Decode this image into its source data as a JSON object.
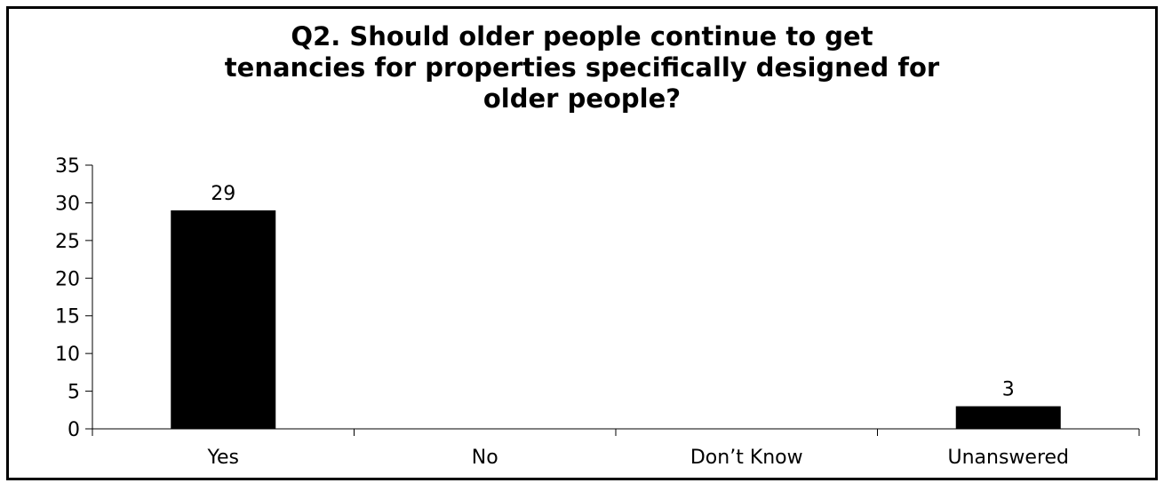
{
  "chart_data": {
    "type": "bar",
    "title_lines": [
      "Q2. Should older people continue to get",
      "tenancies for properties specifically designed for",
      "older people?"
    ],
    "categories": [
      "Yes",
      "No",
      "Don’t Know",
      "Unanswered"
    ],
    "values": [
      29,
      0,
      0,
      3
    ],
    "data_labels": [
      "29",
      "",
      "",
      "3"
    ],
    "ylim": [
      0,
      35
    ],
    "yticks": [
      0,
      5,
      10,
      15,
      20,
      25,
      30,
      35
    ],
    "xlabel": "",
    "ylabel": "",
    "grid": false,
    "legend": "none",
    "colors": {
      "bar": "#000000",
      "axis": "#000000",
      "frame": "#000000",
      "background": "#ffffff"
    }
  }
}
